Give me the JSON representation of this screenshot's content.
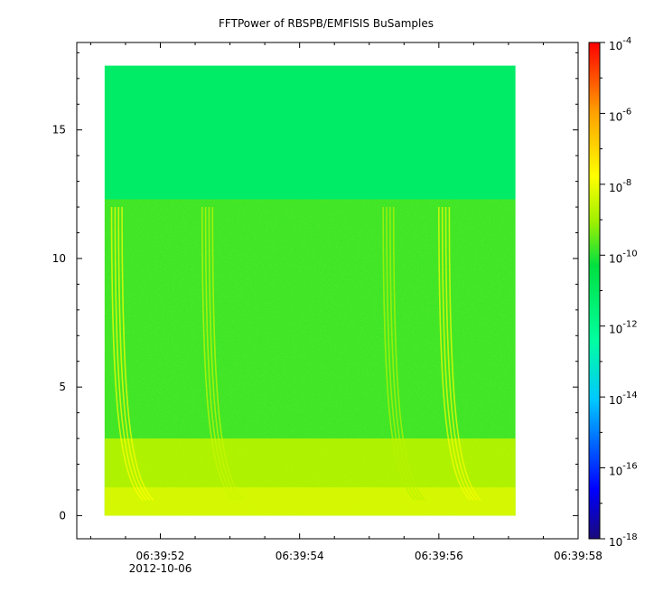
{
  "chart_data": {
    "type": "heatmap",
    "title": "FFTPower of RBSPB/EMFISIS  BuSamples",
    "xlabel": "",
    "ylabel": "",
    "x_axis": {
      "type": "time",
      "range": [
        "06:39:50.8",
        "06:39:58"
      ],
      "data_start": "06:39:51.2",
      "data_end": "06:39:57.1",
      "ticks": [
        {
          "value": "06:39:52",
          "label": "06:39:52",
          "sublabel": "2012-10-06"
        },
        {
          "value": "06:39:54",
          "label": "06:39:54",
          "sublabel": ""
        },
        {
          "value": "06:39:56",
          "label": "06:39:56",
          "sublabel": ""
        },
        {
          "value": "06:39:58",
          "label": "06:39:58",
          "sublabel": ""
        }
      ],
      "minor_tick_step_seconds": 0.5
    },
    "y_axis": {
      "range": [
        -0.9,
        18.4
      ],
      "data_range": [
        0,
        17.5
      ],
      "ticks": [
        {
          "value": 0,
          "label": "0"
        },
        {
          "value": 5,
          "label": "5"
        },
        {
          "value": 10,
          "label": "10"
        },
        {
          "value": 15,
          "label": "15"
        }
      ],
      "minor_tick_step": 1
    },
    "z_axis": {
      "scale": "log",
      "range": [
        1e-18,
        0.0001
      ],
      "ticks": [
        {
          "base": "10",
          "exp": "-4",
          "value": 0.0001
        },
        {
          "base": "10",
          "exp": "-6",
          "value": 1e-06
        },
        {
          "base": "10",
          "exp": "-8",
          "value": 1e-08
        },
        {
          "base": "10",
          "exp": "-10",
          "value": 1e-10
        },
        {
          "base": "10",
          "exp": "-12",
          "value": 1e-12
        },
        {
          "base": "10",
          "exp": "-14",
          "value": 1e-14
        },
        {
          "base": "10",
          "exp": "-16",
          "value": 1e-16
        },
        {
          "base": "10",
          "exp": "-18",
          "value": 1e-18
        }
      ],
      "colormap": [
        "#1a0a7a",
        "#0000ff",
        "#00c8ff",
        "#00ffa0",
        "#00e040",
        "#a0f000",
        "#ffff00",
        "#ffa000",
        "#ff0000"
      ]
    },
    "bands": [
      {
        "y_from": 12.3,
        "y_to": 17.5,
        "level_log10": -11.7
      },
      {
        "y_from": 0,
        "y_to": 12.3,
        "level_log10": -10.3
      },
      {
        "y_from": 0,
        "y_to": 3,
        "level_log10": -9.0
      },
      {
        "y_from": 0,
        "y_to": 1.1,
        "level_log10": -8.3
      }
    ],
    "chorus_bursts": [
      {
        "time": "06:39:51.3",
        "level_log10": -7.5
      },
      {
        "time": "06:39:52.6",
        "level_log10": -8.5
      },
      {
        "time": "06:39:55.2",
        "level_log10": -8.8
      },
      {
        "time": "06:39:56.0",
        "level_log10": -7.6
      }
    ],
    "grid": false
  }
}
